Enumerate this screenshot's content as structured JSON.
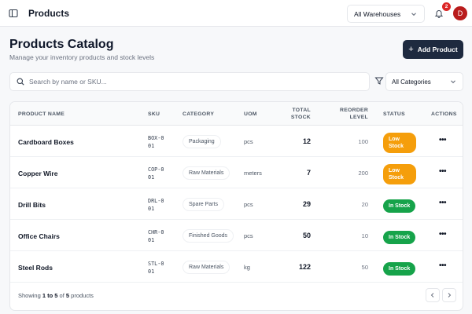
{
  "header": {
    "title": "Products",
    "warehouse": "All Warehouses",
    "notification_count": "2",
    "avatar_initial": "D"
  },
  "page": {
    "title": "Products Catalog",
    "subtitle": "Manage your inventory products and stock levels",
    "add_button": "Add Product"
  },
  "filters": {
    "search_placeholder": "Search by name or SKU...",
    "category": "All Categories"
  },
  "table": {
    "columns": [
      "PRODUCT NAME",
      "SKU",
      "CATEGORY",
      "UOM",
      "TOTAL STOCK",
      "REORDER LEVEL",
      "STATUS",
      "ACTIONS"
    ],
    "rows": [
      {
        "name": "Cardboard Boxes",
        "sku": "BOX-001",
        "category": "Packaging",
        "uom": "pcs",
        "stock": "12",
        "reorder": "100",
        "status": "Low Stock",
        "status_type": "low"
      },
      {
        "name": "Copper Wire",
        "sku": "COP-001",
        "category": "Raw Materials",
        "uom": "meters",
        "stock": "7",
        "reorder": "200",
        "status": "Low Stock",
        "status_type": "low"
      },
      {
        "name": "Drill Bits",
        "sku": "DRL-001",
        "category": "Spare Parts",
        "uom": "pcs",
        "stock": "29",
        "reorder": "20",
        "status": "In Stock",
        "status_type": "in"
      },
      {
        "name": "Office Chairs",
        "sku": "CHR-001",
        "category": "Finished Goods",
        "uom": "pcs",
        "stock": "50",
        "reorder": "10",
        "status": "In Stock",
        "status_type": "in"
      },
      {
        "name": "Steel Rods",
        "sku": "STL-001",
        "category": "Raw Materials",
        "uom": "kg",
        "stock": "122",
        "reorder": "50",
        "status": "In Stock",
        "status_type": "in"
      }
    ],
    "actions_label": "•••"
  },
  "footer": {
    "showing_prefix": "Showing ",
    "range": "1 to 5",
    "of": " of ",
    "total": "5",
    "suffix": " products"
  },
  "colors": {
    "primary": "#1e2a3f",
    "low_stock": "#f59e0b",
    "in_stock": "#16a34a",
    "badge_red": "#dc2626"
  }
}
